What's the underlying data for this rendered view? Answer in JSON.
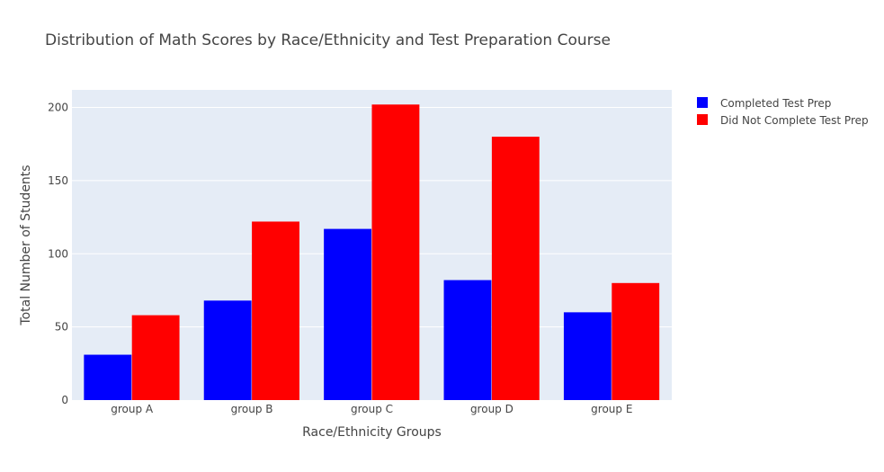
{
  "chart_data": {
    "type": "bar",
    "title": "Distribution of Math Scores by Race/Ethnicity and Test Preparation Course",
    "xlabel": "Race/Ethnicity Groups",
    "ylabel": "Total Number of Students",
    "categories": [
      "group A",
      "group B",
      "group C",
      "group D",
      "group E"
    ],
    "series": [
      {
        "name": "Completed Test Prep",
        "color": "#0000ff",
        "values": [
          31,
          68,
          117,
          82,
          60
        ]
      },
      {
        "name": "Did Not Complete Test Prep",
        "color": "#ff0000",
        "values": [
          58,
          122,
          202,
          180,
          80
        ]
      }
    ],
    "ylim": [
      0,
      212
    ],
    "yticks": [
      0,
      50,
      100,
      150,
      200
    ],
    "grid": true,
    "legend_position": "top-right",
    "plot_background": "#e5ecf6"
  }
}
